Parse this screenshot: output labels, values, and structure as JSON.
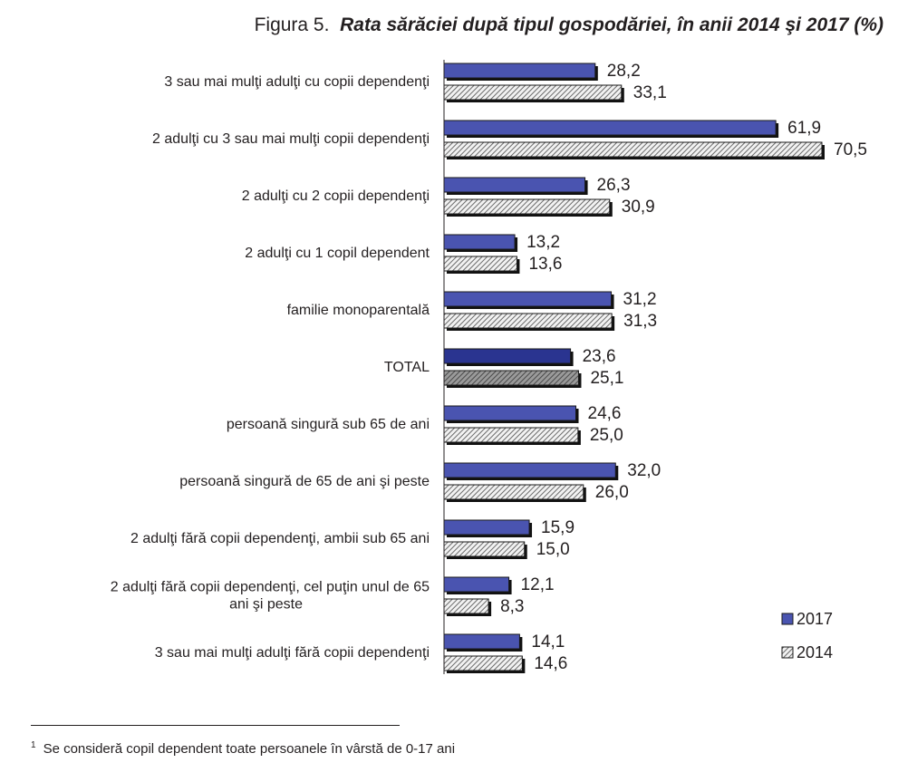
{
  "title": {
    "prefix": "Figura 5.",
    "main": "Rata sărăciei după tipul gospodăriei, în anii 2014 şi 2017 (%)"
  },
  "colors": {
    "bar_2017": "#4a54b0",
    "bar_2017_total": "#2a3490",
    "hatch_2014_bg": "#f2f2f2",
    "hatch_2014_line": "#6a6a6a",
    "hatch_total_bg": "#9a9a9a",
    "shadow": "#111111"
  },
  "chart_data": {
    "type": "bar",
    "orientation": "horizontal",
    "categories": [
      [
        "3 sau mai mulţi adulţi cu copii dependenţi"
      ],
      [
        "2 adulţi cu 3 sau mai mulţi copii dependenţi"
      ],
      [
        "2 adulţi cu 2 copii dependenţi"
      ],
      [
        "2 adulţi cu 1 copil dependent"
      ],
      [
        "familie monoparentală"
      ],
      [
        "TOTAL"
      ],
      [
        "persoană singură sub 65 de ani"
      ],
      [
        "persoană singură de 65 de ani şi peste"
      ],
      [
        "2 adulţi fără copii dependenţi, ambii sub 65 ani"
      ],
      [
        "2 adulţi fără copii dependenţi, cel puţin unul de 65",
        "ani şi peste"
      ],
      [
        "3 sau mai mulţi adulţi fără copii dependenţi"
      ]
    ],
    "series": [
      {
        "name": "2017",
        "values": [
          28.2,
          61.9,
          26.3,
          13.2,
          31.2,
          23.6,
          24.6,
          32.0,
          15.9,
          12.1,
          14.1
        ],
        "labels": [
          "28,2",
          "61,9",
          "26,3",
          "13,2",
          "31,2",
          "23,6",
          "24,6",
          "32,0",
          "15,9",
          "12,1",
          "14,1"
        ]
      },
      {
        "name": "2014",
        "values": [
          33.1,
          70.5,
          30.9,
          13.6,
          31.3,
          25.1,
          25.0,
          26.0,
          15.0,
          8.3,
          14.6
        ],
        "labels": [
          "33,1",
          "70,5",
          "30,9",
          "13,6",
          "31,3",
          "25,1",
          "25,0",
          "26,0",
          "15,0",
          "8,3",
          "14,6"
        ]
      }
    ],
    "highlight_category": "TOTAL",
    "xlim": [
      0,
      75
    ],
    "grid": false,
    "legend_position": "bottom-right"
  },
  "footnote": {
    "marker": "1",
    "text": "Se consideră copil dependent toate persoanele în vârstă de 0-17 ani"
  }
}
